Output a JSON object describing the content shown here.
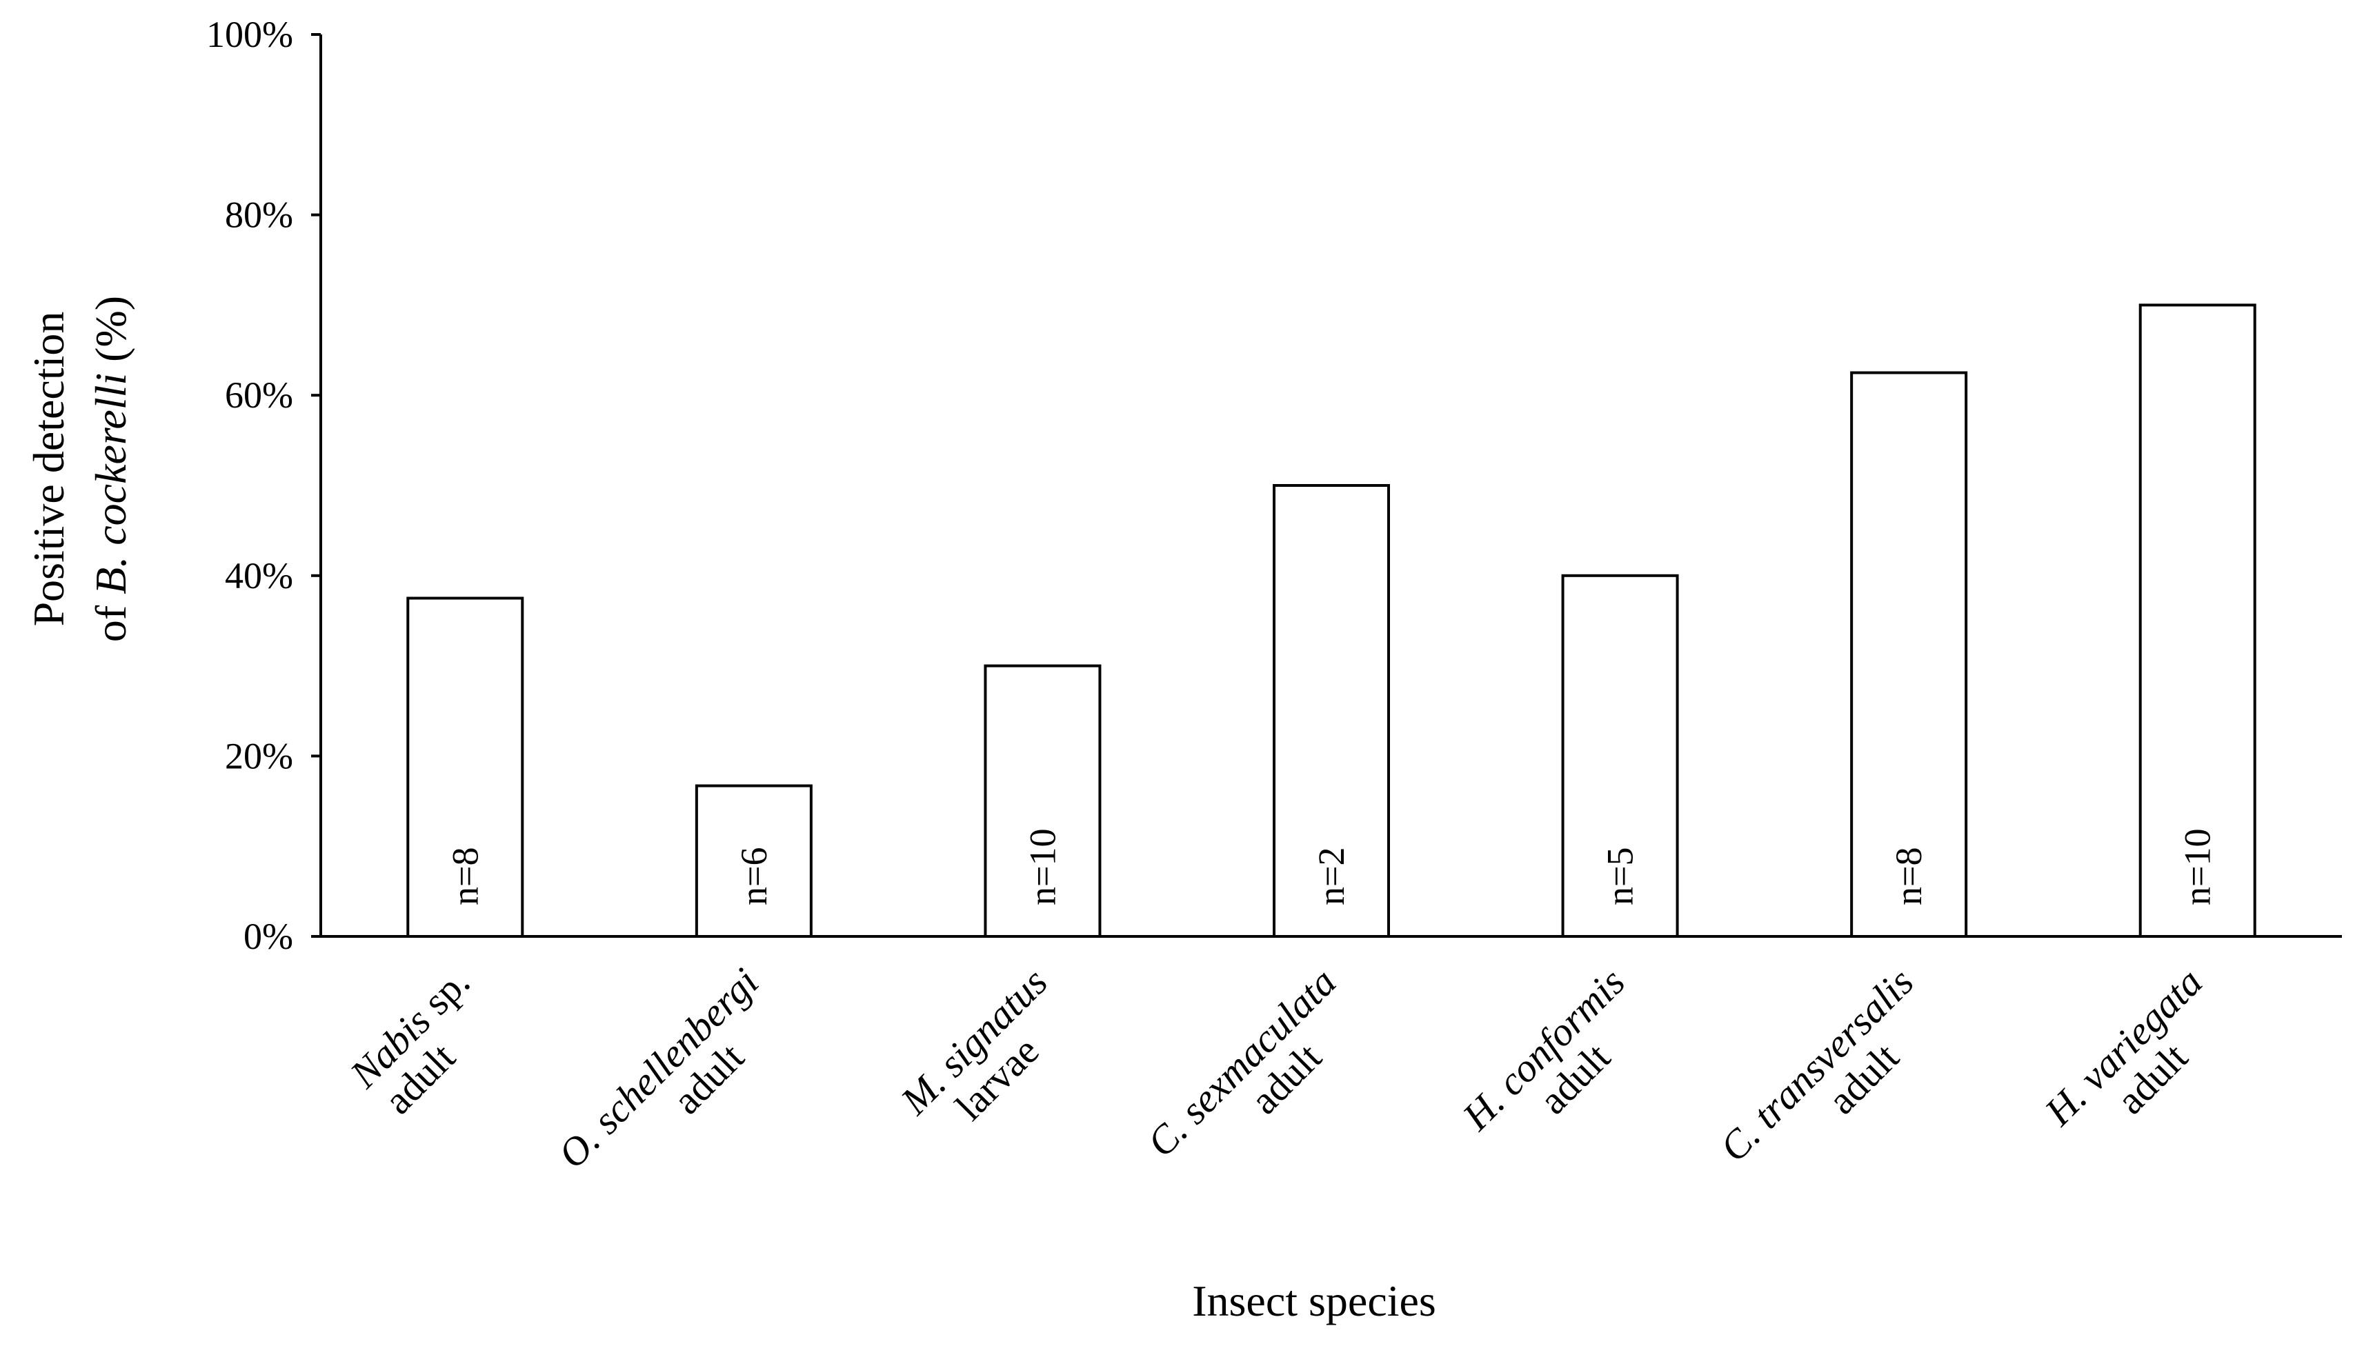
{
  "chart_data": {
    "type": "bar",
    "title": "",
    "xlabel": "Insect species",
    "ylabel": {
      "line1": "Positive detection",
      "line2_prefix": "of ",
      "line2_italic": "B. cockerelli",
      "line2_suffix": " (%)"
    },
    "ylim": [
      0,
      100
    ],
    "yticks": [
      {
        "value": 0,
        "label": "0%"
      },
      {
        "value": 20,
        "label": "20%"
      },
      {
        "value": 40,
        "label": "40%"
      },
      {
        "value": 60,
        "label": "60%"
      },
      {
        "value": 80,
        "label": "80%"
      },
      {
        "value": 100,
        "label": "100%"
      }
    ],
    "categories": [
      {
        "line1_italic": "Nabis",
        "line1_plain": " sp.",
        "line2": "adult"
      },
      {
        "line1_italic": "O. schellenbergi",
        "line1_plain": "",
        "line2": "adult"
      },
      {
        "line1_italic": "M. signatus",
        "line1_plain": "",
        "line2": "larvae"
      },
      {
        "line1_italic": "C. sexmaculata",
        "line1_plain": "",
        "line2": "adult"
      },
      {
        "line1_italic": "H. conformis",
        "line1_plain": "",
        "line2": "adult"
      },
      {
        "line1_italic": "C. transversalis",
        "line1_plain": "",
        "line2": "adult"
      },
      {
        "line1_italic": "H. variegata",
        "line1_plain": "",
        "line2": "adult"
      }
    ],
    "values": [
      37.5,
      16.7,
      30,
      50,
      40,
      62.5,
      70
    ],
    "sample_sizes": [
      "n=8",
      "n=6",
      "n=10",
      "n=2",
      "n=5",
      "n=8",
      "n=10"
    ],
    "colors": {
      "bar_fill": "#ffffff",
      "bar_stroke": "#000000",
      "axis": "#000000"
    }
  }
}
